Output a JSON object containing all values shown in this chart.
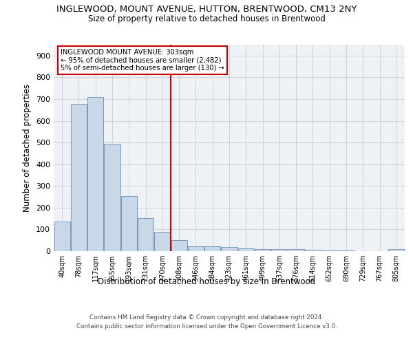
{
  "title": "INGLEWOOD, MOUNT AVENUE, HUTTON, BRENTWOOD, CM13 2NY",
  "subtitle": "Size of property relative to detached houses in Brentwood",
  "xlabel": "Distribution of detached houses by size in Brentwood",
  "ylabel": "Number of detached properties",
  "bar_color": "#c8d8e8",
  "bar_edge_color": "#7799bb",
  "background_color": "#eef2f7",
  "grid_color": "#cccccc",
  "vline_color": "#cc0000",
  "annotation_text": "INGLEWOOD MOUNT AVENUE: 303sqm\n← 95% of detached houses are smaller (2,482)\n5% of semi-detached houses are larger (130) →",
  "annotation_box_color": "#cc0000",
  "categories": [
    "40sqm",
    "78sqm",
    "117sqm",
    "155sqm",
    "193sqm",
    "231sqm",
    "270sqm",
    "308sqm",
    "346sqm",
    "384sqm",
    "423sqm",
    "461sqm",
    "499sqm",
    "537sqm",
    "576sqm",
    "614sqm",
    "652sqm",
    "690sqm",
    "729sqm",
    "767sqm",
    "805sqm"
  ],
  "values": [
    135,
    678,
    710,
    493,
    253,
    153,
    88,
    50,
    23,
    23,
    18,
    13,
    10,
    10,
    8,
    5,
    3,
    2,
    1,
    1,
    10
  ],
  "ylim": [
    0,
    950
  ],
  "yticks": [
    0,
    100,
    200,
    300,
    400,
    500,
    600,
    700,
    800,
    900
  ],
  "footer_line1": "Contains HM Land Registry data © Crown copyright and database right 2024.",
  "footer_line2": "Contains public sector information licensed under the Open Government Licence v3.0."
}
